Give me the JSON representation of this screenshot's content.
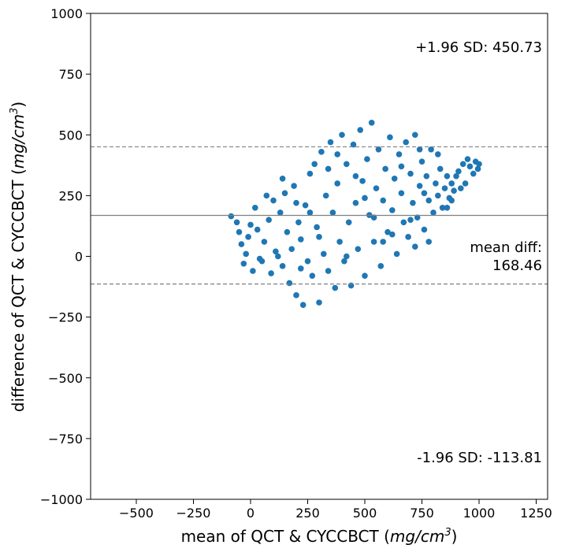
{
  "chart_data": {
    "type": "scatter",
    "xlabel": "mean of QCT & CYCCBCT (mg/cm³)",
    "ylabel": "difference of QCT & CYCCBCT (mg/cm³)",
    "xlabel_main": "mean of QCT & CYCCBCT (",
    "xlabel_unit": "mg/cm",
    "xlabel_sup": "3",
    "xlabel_close": ")",
    "ylabel_main": "difference of QCT & CYCCBCT (",
    "ylabel_unit": "mg/cm",
    "ylabel_sup": "3",
    "ylabel_close": ")",
    "xlim": [
      -700,
      1300
    ],
    "ylim": [
      -1000,
      1000
    ],
    "xticks": [
      -500,
      -250,
      0,
      250,
      500,
      750,
      1000,
      1250
    ],
    "xtick_labels": [
      "−500",
      "−250",
      "0",
      "250",
      "500",
      "750",
      "1000",
      "1250"
    ],
    "yticks": [
      -1000,
      -750,
      -500,
      -250,
      0,
      250,
      500,
      750,
      1000
    ],
    "ytick_labels": [
      "−1000",
      "−750",
      "−500",
      "−250",
      "0",
      "250",
      "500",
      "750",
      "1000"
    ],
    "mean_diff": 168.46,
    "upper_loa": 450.73,
    "lower_loa": -113.81,
    "annotations": {
      "upper": "+1.96 SD: 450.73",
      "mean_line1": "mean diff:",
      "mean_line2": "168.46",
      "lower": "-1.96 SD: -113.81"
    },
    "point_color": "#1f77b4",
    "mean_line_color": "#808080",
    "loa_line_color": "#808080",
    "grid": false,
    "legend": "none",
    "series": [
      {
        "points": [
          [
            -85,
            165
          ],
          [
            -60,
            140
          ],
          [
            -40,
            50
          ],
          [
            -30,
            -30
          ],
          [
            -20,
            10
          ],
          [
            -10,
            80
          ],
          [
            0,
            130
          ],
          [
            10,
            -60
          ],
          [
            20,
            200
          ],
          [
            30,
            110
          ],
          [
            50,
            -20
          ],
          [
            60,
            60
          ],
          [
            80,
            150
          ],
          [
            90,
            -70
          ],
          [
            100,
            230
          ],
          [
            110,
            20
          ],
          [
            130,
            180
          ],
          [
            140,
            -40
          ],
          [
            150,
            260
          ],
          [
            160,
            100
          ],
          [
            170,
            -110
          ],
          [
            180,
            30
          ],
          [
            190,
            290
          ],
          [
            200,
            -160
          ],
          [
            210,
            140
          ],
          [
            220,
            70
          ],
          [
            230,
            -200
          ],
          [
            240,
            210
          ],
          [
            250,
            -20
          ],
          [
            260,
            340
          ],
          [
            270,
            -80
          ],
          [
            280,
            380
          ],
          [
            290,
            120
          ],
          [
            300,
            -190
          ],
          [
            310,
            430
          ],
          [
            320,
            10
          ],
          [
            330,
            250
          ],
          [
            340,
            -60
          ],
          [
            350,
            470
          ],
          [
            360,
            180
          ],
          [
            370,
            -130
          ],
          [
            380,
            300
          ],
          [
            390,
            60
          ],
          [
            400,
            500
          ],
          [
            410,
            -20
          ],
          [
            420,
            380
          ],
          [
            430,
            140
          ],
          [
            440,
            -120
          ],
          [
            450,
            460
          ],
          [
            460,
            220
          ],
          [
            470,
            30
          ],
          [
            480,
            520
          ],
          [
            490,
            310
          ],
          [
            500,
            -80
          ],
          [
            510,
            400
          ],
          [
            520,
            170
          ],
          [
            530,
            550
          ],
          [
            540,
            60
          ],
          [
            550,
            280
          ],
          [
            560,
            440
          ],
          [
            570,
            -40
          ],
          [
            580,
            230
          ],
          [
            590,
            360
          ],
          [
            600,
            100
          ],
          [
            610,
            490
          ],
          [
            620,
            190
          ],
          [
            630,
            320
          ],
          [
            640,
            10
          ],
          [
            650,
            420
          ],
          [
            660,
            260
          ],
          [
            670,
            140
          ],
          [
            680,
            470
          ],
          [
            690,
            80
          ],
          [
            700,
            340
          ],
          [
            710,
            220
          ],
          [
            720,
            500
          ],
          [
            730,
            160
          ],
          [
            740,
            290
          ],
          [
            750,
            390
          ],
          [
            760,
            110
          ],
          [
            770,
            330
          ],
          [
            780,
            230
          ],
          [
            790,
            440
          ],
          [
            800,
            180
          ],
          [
            810,
            300
          ],
          [
            820,
            250
          ],
          [
            830,
            360
          ],
          [
            840,
            200
          ],
          [
            850,
            280
          ],
          [
            860,
            330
          ],
          [
            870,
            240
          ],
          [
            880,
            300
          ],
          [
            890,
            270
          ],
          [
            900,
            330
          ],
          [
            910,
            350
          ],
          [
            920,
            280
          ],
          [
            930,
            380
          ],
          [
            940,
            300
          ],
          [
            950,
            400
          ],
          [
            960,
            370
          ],
          [
            975,
            340
          ],
          [
            985,
            390
          ],
          [
            995,
            360
          ],
          [
            1000,
            380
          ],
          [
            -50,
            100
          ],
          [
            40,
            -10
          ],
          [
            70,
            250
          ],
          [
            120,
            0
          ],
          [
            140,
            320
          ],
          [
            200,
            220
          ],
          [
            220,
            -50
          ],
          [
            260,
            180
          ],
          [
            300,
            80
          ],
          [
            340,
            360
          ],
          [
            380,
            420
          ],
          [
            420,
            0
          ],
          [
            460,
            330
          ],
          [
            500,
            240
          ],
          [
            540,
            160
          ],
          [
            580,
            60
          ],
          [
            620,
            90
          ],
          [
            660,
            370
          ],
          [
            700,
            150
          ],
          [
            740,
            440
          ],
          [
            780,
            60
          ],
          [
            820,
            420
          ],
          [
            860,
            200
          ],
          [
            880,
            230
          ],
          [
            760,
            260
          ],
          [
            720,
            40
          ]
        ]
      }
    ]
  }
}
